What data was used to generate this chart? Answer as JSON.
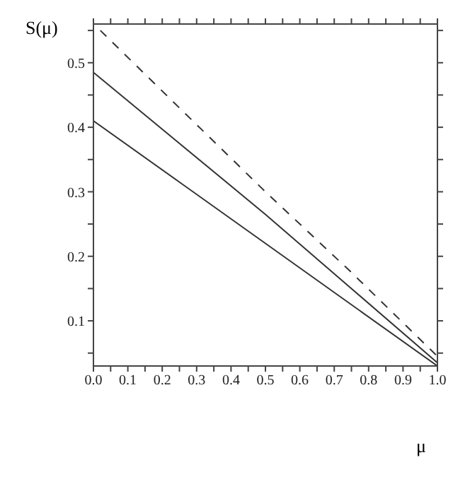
{
  "chart_data": {
    "type": "line",
    "ylabel": "S(μ)",
    "xlabel": "μ",
    "xlim": [
      0,
      1
    ],
    "ylim": [
      0.03,
      0.56
    ],
    "xticks": [
      {
        "value": 0,
        "label": "0.0"
      },
      {
        "value": 0.05,
        "label": null
      },
      0.1,
      {
        "value": 0.15,
        "label": null
      },
      0.2,
      {
        "value": 0.25,
        "label": null
      },
      0.3,
      {
        "value": 0.35,
        "label": null
      },
      0.4,
      {
        "value": 0.45,
        "label": null
      },
      0.5,
      {
        "value": 0.55,
        "label": null
      },
      0.6,
      {
        "value": 0.65,
        "label": null
      },
      0.7,
      {
        "value": 0.75,
        "label": null
      },
      0.8,
      {
        "value": 0.85,
        "label": null
      },
      0.9,
      {
        "value": 0.95,
        "label": null
      },
      {
        "value": 1,
        "label": "1.0"
      }
    ],
    "yticks": [
      {
        "value": 0.05,
        "label": null
      },
      0.1,
      {
        "value": 0.15,
        "label": null
      },
      0.2,
      {
        "value": 0.25,
        "label": null
      },
      0.3,
      {
        "value": 0.35,
        "label": null
      },
      0.4,
      {
        "value": 0.45,
        "label": null
      },
      0.5,
      {
        "value": 0.55,
        "label": null
      }
    ],
    "grid": false,
    "legend": false,
    "marker": "none",
    "series": [
      {
        "color": "#333333",
        "line_style": "dashed",
        "x": [
          0.02,
          0.25,
          0.5,
          0.75,
          1
        ],
        "values": [
          0.55,
          0.43,
          0.3,
          0.175,
          0.045
        ]
      },
      {
        "color": "#333333",
        "line_style": "solid",
        "x": [
          0,
          0.25,
          0.5,
          0.75,
          1
        ],
        "values": [
          0.485,
          0.375,
          0.265,
          0.15,
          0.035
        ]
      },
      {
        "color": "#333333",
        "line_style": "solid",
        "x": [
          0,
          0.25,
          0.5,
          0.75,
          1
        ],
        "values": [
          0.41,
          0.315,
          0.22,
          0.125,
          0.03
        ]
      }
    ]
  }
}
